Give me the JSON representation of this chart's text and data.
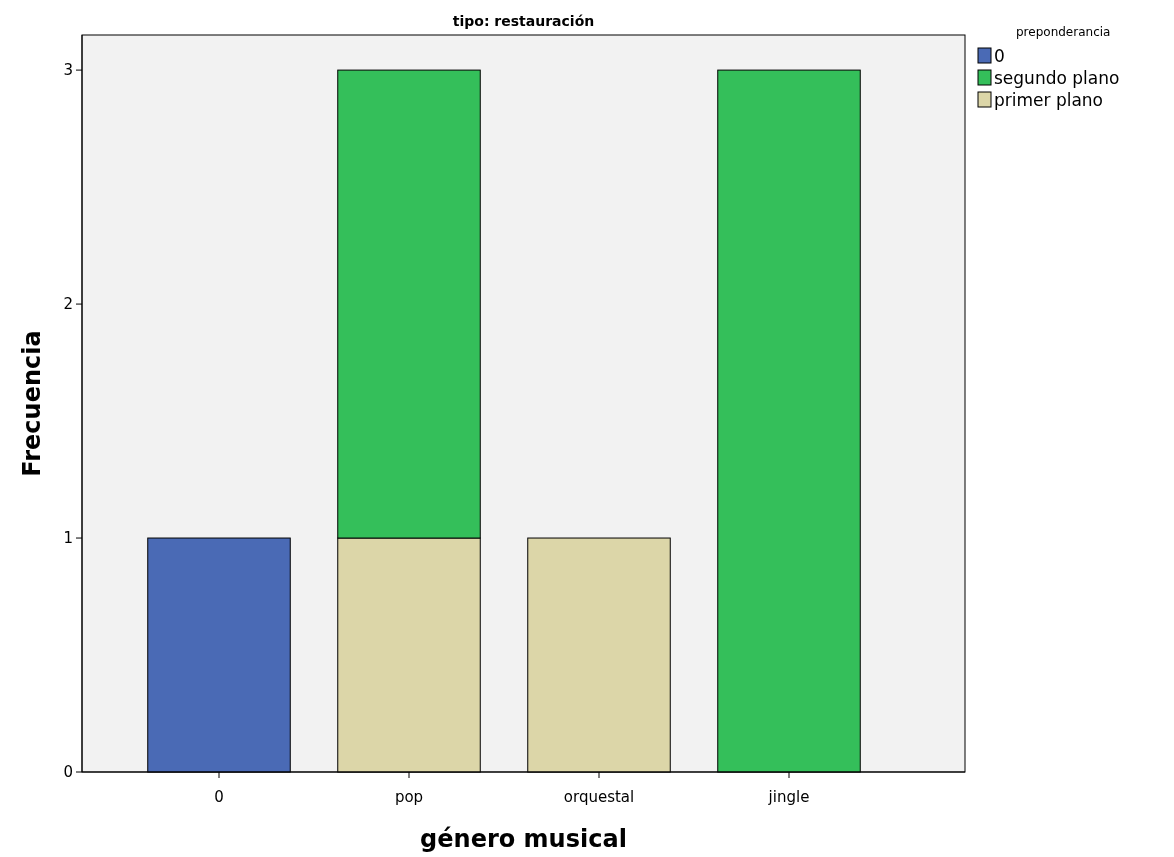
{
  "chart_data": {
    "type": "bar",
    "title": "tipo: restauración",
    "xlabel": "género musical",
    "ylabel": "Frecuencia",
    "legend_title": "preponderancia",
    "categories": [
      "0",
      "pop",
      "orquestal",
      "jingle"
    ],
    "stacked": true,
    "series": [
      {
        "name": "primer plano",
        "color": "#dcd6a8",
        "values": [
          0,
          1,
          1,
          0
        ]
      },
      {
        "name": "segundo plano",
        "color": "#34bf5a",
        "values": [
          0,
          2,
          0,
          3
        ]
      },
      {
        "name": "0",
        "color": "#4a6ab5",
        "values": [
          1,
          0,
          0,
          0
        ]
      }
    ],
    "ylim": [
      0,
      3.15
    ],
    "yticks": [
      0,
      1,
      2,
      3
    ],
    "grid": false,
    "legend": "right"
  }
}
